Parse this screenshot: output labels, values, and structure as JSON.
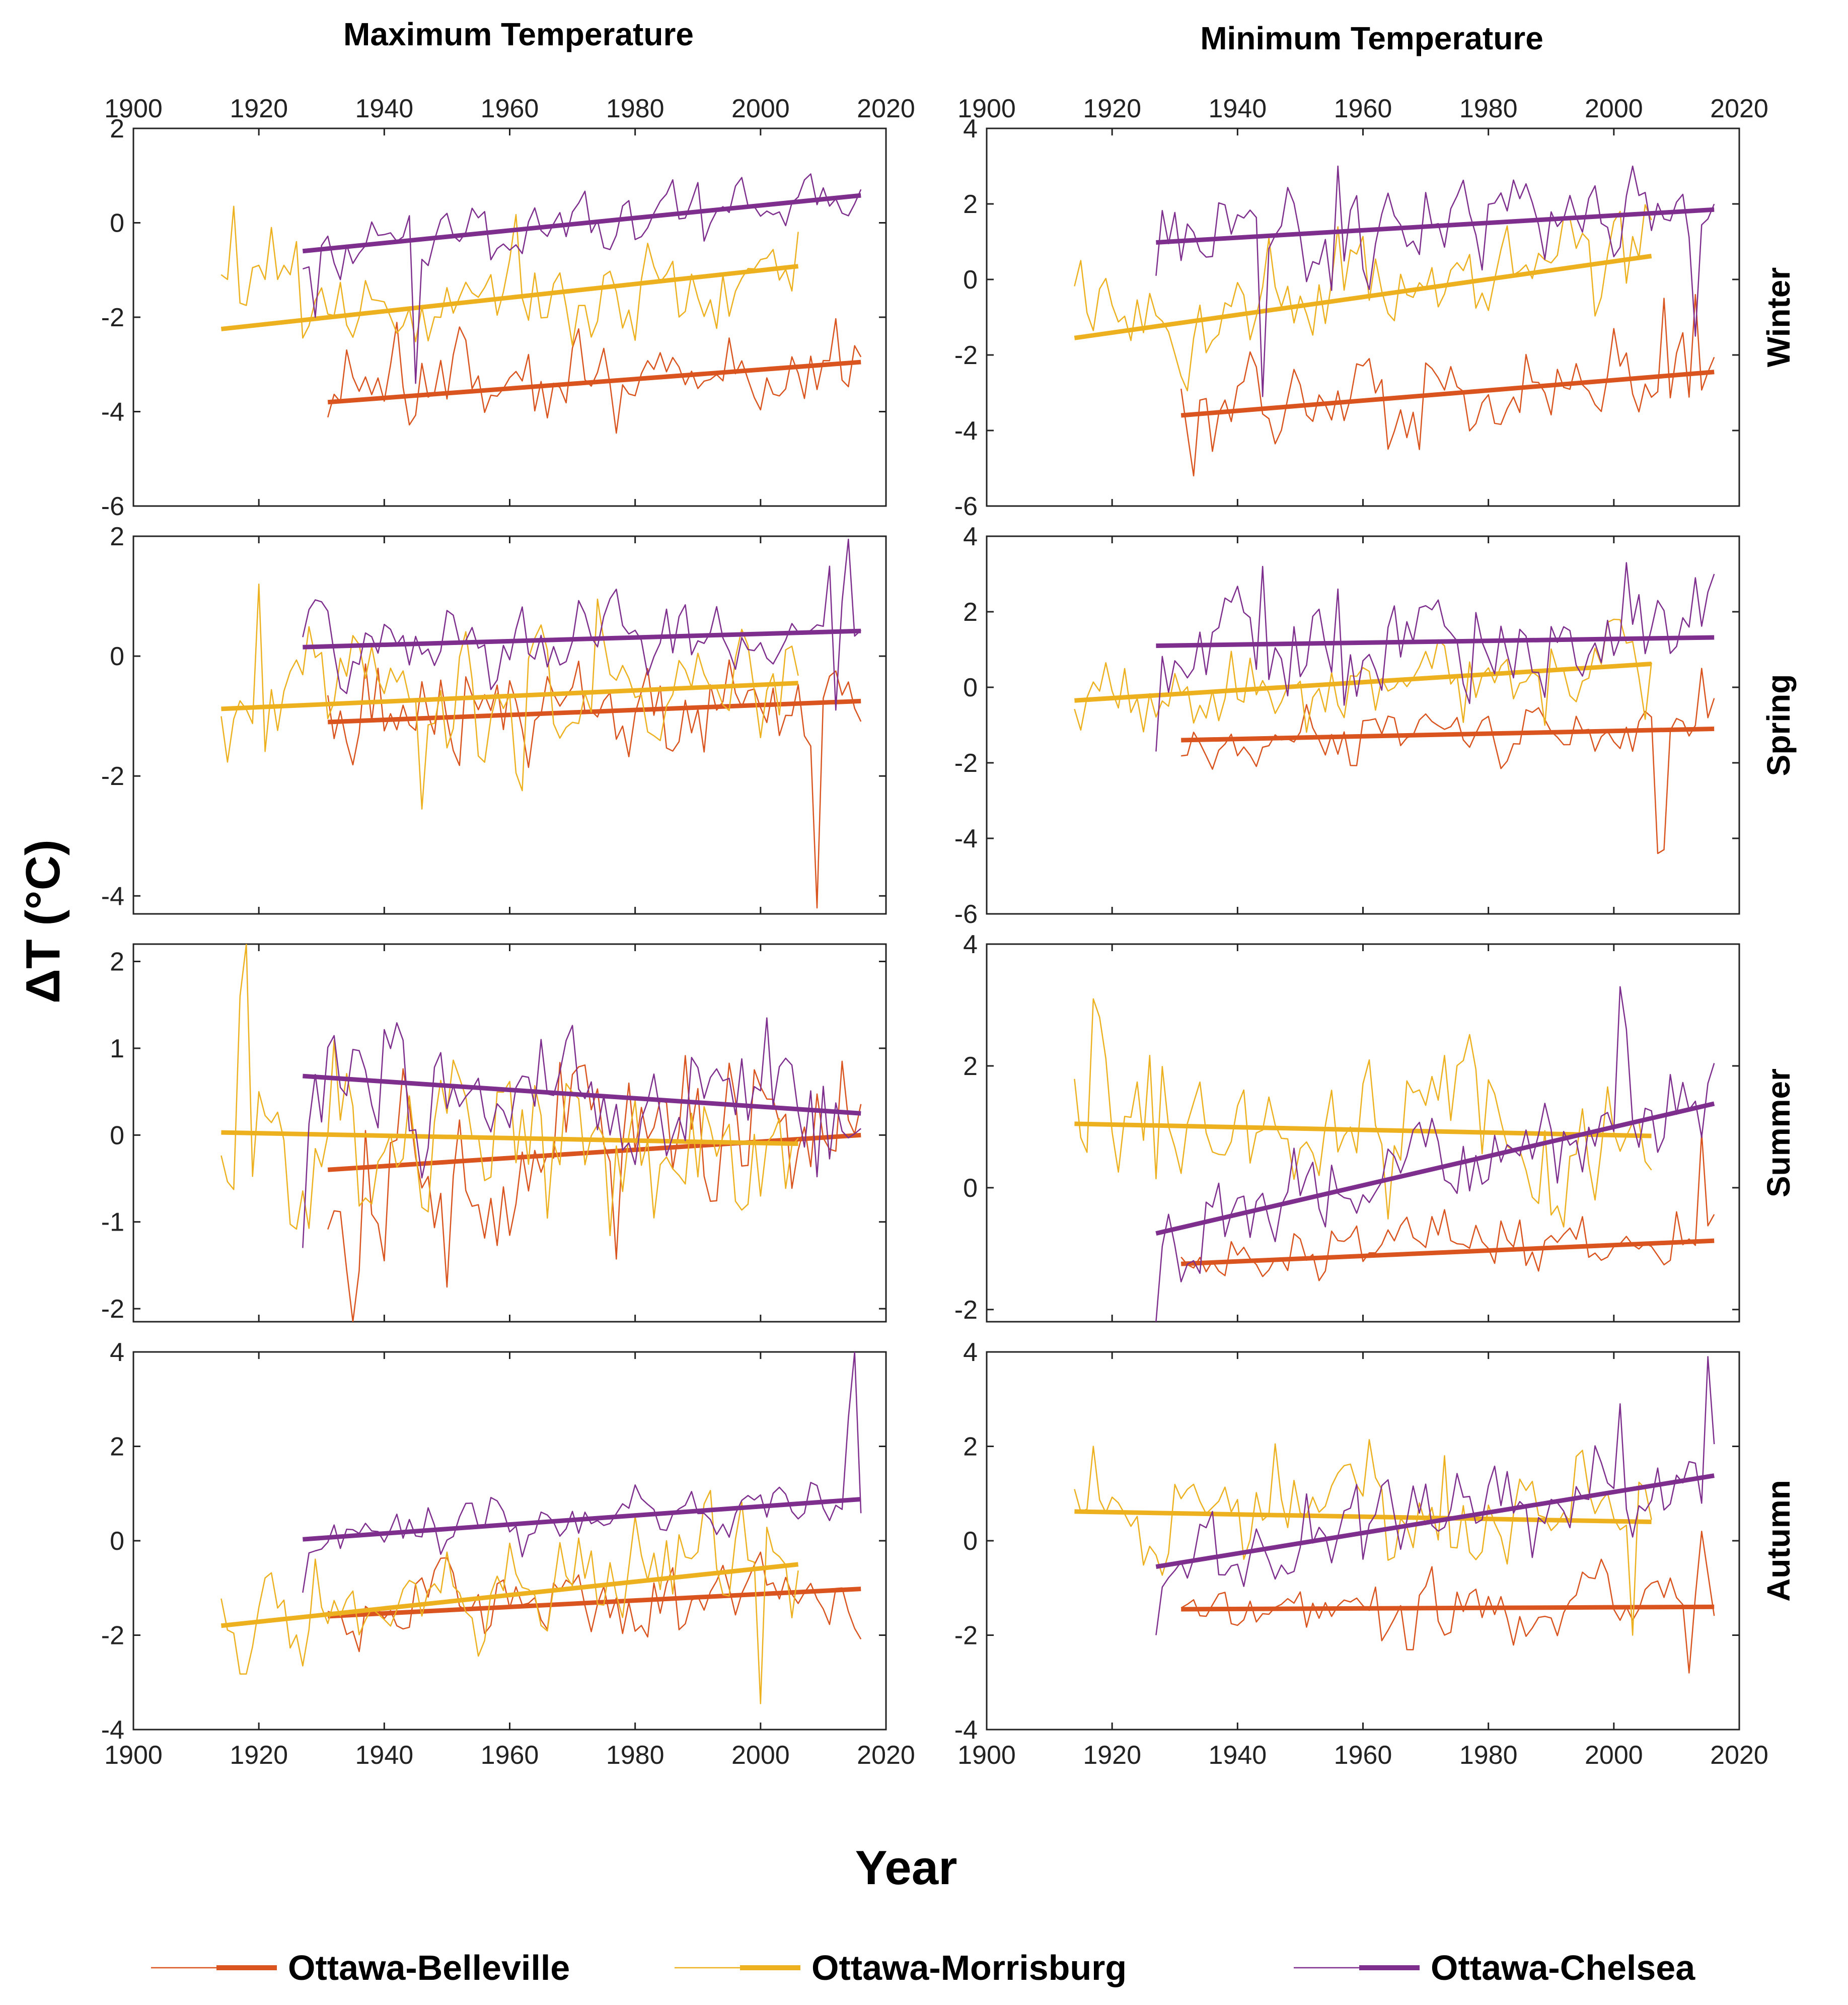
{
  "chart_data": {
    "type": "line",
    "column_titles": [
      "Maximum Temperature",
      "Minimum Temperature"
    ],
    "row_titles": [
      "Winter",
      "Spring",
      "Summer",
      "Autumn"
    ],
    "ylabel": "ΔT (°C)",
    "xlabel": "Year",
    "xlim": [
      1900,
      2020
    ],
    "xticks": [
      "1900",
      "1920",
      "1940",
      "1960",
      "1980",
      "2000",
      "2020"
    ],
    "series_names": [
      "Ottawa-Belleville",
      "Ottawa-Morrisburg",
      "Ottawa-Chelsea"
    ],
    "colors": {
      "Ottawa-Belleville": "#D9541E",
      "Ottawa-Morrisburg": "#EDB120",
      "Ottawa-Chelsea": "#7E2F8E"
    },
    "panels": [
      {
        "row": "Winter",
        "column": "Maximum Temperature",
        "ylim": [
          -6,
          2
        ],
        "yticks": [
          "-6",
          "-4",
          "-2",
          "0",
          "2"
        ],
        "series": [
          {
            "name": "Ottawa-Belleville",
            "start": 1931,
            "end": 2016,
            "trend": [
              1931,
              -3.8,
              2016,
              -2.95
            ],
            "base": -3.4,
            "slopeNoise": 0.45,
            "sd": 0.5,
            "seed": 11
          },
          {
            "name": "Ottawa-Morrisburg",
            "start": 1914,
            "end": 2006,
            "trend": [
              1914,
              -2.25,
              2006,
              -0.92
            ],
            "base": -1.6,
            "sd": 0.6,
            "seed": 12,
            "early": [
              [
                1914,
                -1.1
              ],
              [
                1915,
                -1.2
              ],
              [
                1916,
                0.35
              ],
              [
                1917,
                -1.7
              ],
              [
                1918,
                -1.75
              ],
              [
                1919,
                -0.95
              ],
              [
                1920,
                -0.9
              ],
              [
                1921,
                -1.2
              ],
              [
                1922,
                -0.1
              ],
              [
                1923,
                -1.2
              ],
              [
                1924,
                -0.9
              ],
              [
                1925,
                -1.1
              ],
              [
                1926,
                -0.4
              ]
            ]
          },
          {
            "name": "Ottawa-Chelsea",
            "start": 1927,
            "end": 2016,
            "trend": [
              1927,
              -0.6,
              2016,
              0.58
            ],
            "sd": 0.35,
            "seed": 13,
            "spikes": [
              [
                1945,
                -3.4
              ],
              [
                1929,
                -2.0
              ]
            ]
          }
        ]
      },
      {
        "row": "Winter",
        "column": "Minimum Temperature",
        "ylim": [
          -6,
          4
        ],
        "yticks": [
          "-6",
          "-4",
          "-2",
          "0",
          "2",
          "4"
        ],
        "series": [
          {
            "name": "Ottawa-Belleville",
            "start": 1931,
            "end": 2016,
            "trend": [
              1931,
              -3.6,
              2016,
              -2.45
            ],
            "sd": 0.6,
            "seed": 21,
            "spikes": [
              [
                1933,
                -5.2
              ],
              [
                2013,
                -0.4
              ],
              [
                2008,
                -0.5
              ]
            ]
          },
          {
            "name": "Ottawa-Morrisburg",
            "start": 1914,
            "end": 2006,
            "trend": [
              1914,
              -1.55,
              2006,
              0.62
            ],
            "sd": 0.7,
            "seed": 22
          },
          {
            "name": "Ottawa-Chelsea",
            "start": 1927,
            "end": 2016,
            "trend": [
              1927,
              0.98,
              2016,
              1.85
            ],
            "sd": 0.7,
            "seed": 23,
            "spikes": [
              [
                1944,
                -3.1
              ],
              [
                1956,
                3.0
              ],
              [
                2003,
                3.0
              ],
              [
                2013,
                -1.5
              ]
            ]
          }
        ]
      },
      {
        "row": "Spring",
        "column": "Maximum Temperature",
        "ylim": [
          -4.3,
          2
        ],
        "yticks": [
          "-4",
          "-2",
          "0",
          "2"
        ],
        "series": [
          {
            "name": "Ottawa-Belleville",
            "start": 1931,
            "end": 2016,
            "trend": [
              1931,
              -1.1,
              2016,
              -0.75
            ],
            "sd": 0.45,
            "seed": 31,
            "spikes": [
              [
                2009,
                -4.2
              ],
              [
                2008,
                -1.5
              ]
            ]
          },
          {
            "name": "Ottawa-Morrisburg",
            "start": 1914,
            "end": 2006,
            "trend": [
              1914,
              -0.88,
              2006,
              -0.45
            ],
            "sd": 0.55,
            "seed": 32,
            "spikes": [
              [
                1946,
                -2.55
              ],
              [
                1920,
                1.2
              ],
              [
                1974,
                0.95
              ]
            ]
          },
          {
            "name": "Ottawa-Chelsea",
            "start": 1927,
            "end": 2016,
            "trend": [
              1927,
              0.15,
              2016,
              0.42
            ],
            "sd": 0.3,
            "seed": 33,
            "spikes": [
              [
                2014,
                1.95
              ],
              [
                2011,
                1.5
              ],
              [
                2012,
                -0.9
              ]
            ]
          }
        ]
      },
      {
        "row": "Spring",
        "column": "Minimum Temperature",
        "ylim": [
          -6,
          4
        ],
        "yticks": [
          "-6",
          "-4",
          "-2",
          "0",
          "2",
          "4"
        ],
        "series": [
          {
            "name": "Ottawa-Belleville",
            "start": 1931,
            "end": 2016,
            "trend": [
              1931,
              -1.4,
              2016,
              -1.1
            ],
            "sd": 0.35,
            "seed": 41,
            "spikes": [
              [
                2007,
                -4.4
              ],
              [
                2008,
                -4.3
              ],
              [
                2014,
                0.5
              ]
            ]
          },
          {
            "name": "Ottawa-Morrisburg",
            "start": 1914,
            "end": 2006,
            "trend": [
              1914,
              -0.35,
              2006,
              0.62
            ],
            "sd": 0.55,
            "seed": 42
          },
          {
            "name": "Ottawa-Chelsea",
            "start": 1927,
            "end": 2016,
            "trend": [
              1927,
              1.1,
              2016,
              1.32
            ],
            "sd": 0.65,
            "seed": 43,
            "spikes": [
              [
                1944,
                3.2
              ],
              [
                1956,
                2.6
              ],
              [
                2002,
                3.3
              ],
              [
                2013,
                2.9
              ],
              [
                1927,
                -1.7
              ]
            ]
          }
        ]
      },
      {
        "row": "Summer",
        "column": "Maximum Temperature",
        "ylim": [
          -2.15,
          2.2
        ],
        "yticks": [
          "-2",
          "-1",
          "0",
          "1",
          "2"
        ],
        "series": [
          {
            "name": "Ottawa-Belleville",
            "start": 1931,
            "end": 2016,
            "trend": [
              1931,
              -0.4,
              2016,
              0.0
            ],
            "sd": 0.5,
            "seed": 51,
            "spikes": [
              [
                1935,
                -2.15
              ],
              [
                1950,
                -1.75
              ],
              [
                2013,
                0.85
              ]
            ]
          },
          {
            "name": "Ottawa-Morrisburg",
            "start": 1914,
            "end": 2006,
            "trend": [
              1914,
              0.03,
              2006,
              -0.1
            ],
            "sd": 0.45,
            "seed": 52,
            "spikes": [
              [
                1918,
                2.2
              ],
              [
                1917,
                1.6
              ]
            ]
          },
          {
            "name": "Ottawa-Chelsea",
            "start": 1927,
            "end": 2016,
            "trend": [
              1927,
              0.68,
              2016,
              0.25
            ],
            "sd": 0.35,
            "seed": 53,
            "spikes": [
              [
                1927,
                -1.3
              ],
              [
                2001,
                1.35
              ]
            ]
          }
        ]
      },
      {
        "row": "Summer",
        "column": "Minimum Temperature",
        "ylim": [
          -2.2,
          4
        ],
        "yticks": [
          "-2",
          "0",
          "2",
          "4"
        ],
        "series": [
          {
            "name": "Ottawa-Belleville",
            "start": 1931,
            "end": 2016,
            "trend": [
              1931,
              -1.25,
              2016,
              -0.87
            ],
            "sd": 0.25,
            "seed": 61,
            "spikes": [
              [
                2014,
                0.9
              ]
            ]
          },
          {
            "name": "Ottawa-Morrisburg",
            "start": 1914,
            "end": 2006,
            "trend": [
              1914,
              1.05,
              2006,
              0.85
            ],
            "sd": 0.6,
            "seed": 62,
            "spikes": [
              [
                1917,
                3.1
              ],
              [
                1918,
                2.8
              ]
            ]
          },
          {
            "name": "Ottawa-Chelsea",
            "start": 1927,
            "end": 2016,
            "trend": [
              1927,
              -0.75,
              2016,
              1.38
            ],
            "sd": 0.35,
            "seed": 63,
            "spikes": [
              [
                2001,
                3.3
              ],
              [
                2002,
                2.6
              ],
              [
                1927,
                -2.2
              ]
            ]
          }
        ]
      },
      {
        "row": "Autumn",
        "column": "Maximum Temperature",
        "ylim": [
          -4,
          4
        ],
        "yticks": [
          "-4",
          "-2",
          "0",
          "2",
          "4"
        ],
        "series": [
          {
            "name": "Ottawa-Belleville",
            "start": 1931,
            "end": 2016,
            "trend": [
              1931,
              -1.6,
              2016,
              -1.02
            ],
            "sd": 0.4,
            "seed": 71,
            "spikes": [
              [
                2013,
                -1.0
              ]
            ]
          },
          {
            "name": "Ottawa-Morrisburg",
            "start": 1914,
            "end": 2006,
            "trend": [
              1914,
              -1.8,
              2006,
              -0.5
            ],
            "sd": 0.55,
            "seed": 72,
            "spikes": [
              [
                2000,
                -3.45
              ]
            ]
          },
          {
            "name": "Ottawa-Chelsea",
            "start": 1927,
            "end": 2016,
            "trend": [
              1927,
              0.03,
              2016,
              0.88
            ],
            "sd": 0.25,
            "seed": 73,
            "spikes": [
              [
                2015,
                4.0
              ],
              [
                2014,
                2.6
              ],
              [
                1927,
                -1.1
              ]
            ]
          }
        ]
      },
      {
        "row": "Autumn",
        "column": "Minimum Temperature",
        "ylim": [
          -4,
          4
        ],
        "yticks": [
          "-4",
          "-2",
          "0",
          "2",
          "4"
        ],
        "series": [
          {
            "name": "Ottawa-Belleville",
            "start": 1931,
            "end": 2016,
            "trend": [
              1931,
              -1.45,
              2016,
              -1.4
            ],
            "sd": 0.35,
            "seed": 81,
            "spikes": [
              [
                2012,
                -2.8
              ],
              [
                2014,
                0.2
              ]
            ]
          },
          {
            "name": "Ottawa-Morrisburg",
            "start": 1914,
            "end": 2006,
            "trend": [
              1914,
              0.62,
              2006,
              0.4
            ],
            "sd": 0.55,
            "seed": 82,
            "spikes": [
              [
                1917,
                2.0
              ],
              [
                2003,
                -2.0
              ]
            ]
          },
          {
            "name": "Ottawa-Chelsea",
            "start": 1927,
            "end": 2016,
            "trend": [
              1927,
              -0.55,
              2016,
              1.38
            ],
            "sd": 0.45,
            "seed": 83,
            "spikes": [
              [
                2015,
                3.9
              ],
              [
                2001,
                2.9
              ],
              [
                1927,
                -2.0
              ]
            ]
          }
        ]
      }
    ]
  },
  "legend": {
    "items": [
      "Ottawa-Belleville",
      "Ottawa-Morrisburg",
      "Ottawa-Chelsea"
    ]
  }
}
